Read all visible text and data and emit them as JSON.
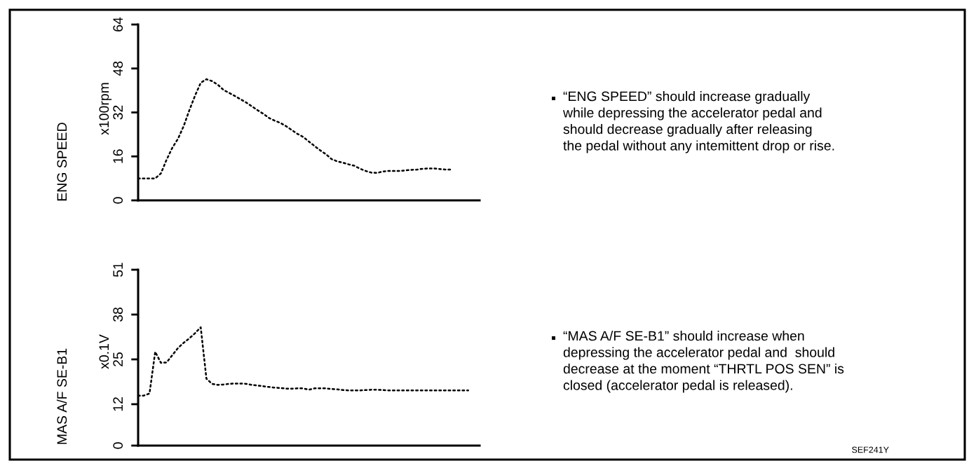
{
  "chart_data": [
    {
      "type": "line",
      "ylabel": "ENG SPEED",
      "color": "#000000",
      "line_style": "dotted",
      "tick_labels": "y",
      "categories": [
        null,
        null,
        null,
        null,
        null,
        null,
        null,
        null,
        null,
        null,
        null,
        null,
        null,
        null,
        null,
        null,
        null,
        null,
        null,
        null,
        null,
        null,
        null,
        null,
        null,
        null,
        null,
        null,
        null,
        null,
        null,
        null,
        null,
        null,
        null,
        null,
        null,
        null,
        null,
        null,
        null,
        null,
        null,
        null,
        null,
        null,
        null,
        null,
        null,
        null,
        null,
        null,
        null,
        null,
        null,
        null,
        null,
        null,
        null,
        null,
        null
      ],
      "values": [
        8.0,
        8.0,
        8.0,
        8.0,
        9.8,
        14.8,
        19.1,
        22.4,
        27.0,
        32.8,
        38.1,
        42.8,
        44.1,
        43.4,
        42.1,
        40.2,
        39.1,
        38.0,
        36.8,
        35.6,
        34.2,
        32.8,
        31.5,
        30.0,
        29.0,
        28.2,
        27.0,
        25.6,
        24.2,
        23.1,
        21.4,
        19.8,
        18.2,
        16.8,
        15.0,
        14.2,
        13.7,
        13.1,
        12.6,
        11.5,
        10.7,
        10.1,
        10.0,
        10.5,
        10.7,
        10.7,
        10.7,
        10.9,
        11.1,
        11.2,
        11.5,
        11.6,
        11.6,
        11.4,
        11.2,
        11.2,
        null,
        null,
        null,
        null,
        null
      ],
      "ylim": [
        0,
        64
      ],
      "yticks": [
        0,
        16,
        32,
        48,
        64
      ],
      "annotations": [
        "x100rpm",
        "“ENG SPEED” should increase gradually\nwhile depressing the accelerator pedal and\nshould decrease gradually after releasing\nthe pedal without any intemittent drop or rise."
      ]
    },
    {
      "type": "line",
      "ylabel": "MAS A/F SE-B1",
      "color": "#000000",
      "line_style": "dotted",
      "tick_labels": "y",
      "categories": [
        null,
        null,
        null,
        null,
        null,
        null,
        null,
        null,
        null,
        null,
        null,
        null,
        null,
        null,
        null,
        null,
        null,
        null,
        null,
        null,
        null,
        null,
        null,
        null,
        null,
        null,
        null,
        null,
        null,
        null,
        null,
        null,
        null,
        null,
        null,
        null,
        null,
        null,
        null,
        null,
        null,
        null,
        null,
        null,
        null,
        null,
        null,
        null,
        null,
        null,
        null,
        null,
        null,
        null,
        null,
        null,
        null,
        null,
        null,
        null,
        null
      ],
      "values": [
        14.5,
        14.5,
        15.1,
        27.2,
        24.0,
        24.1,
        26.2,
        28.3,
        29.8,
        31.1,
        32.6,
        34.3,
        19.4,
        17.9,
        17.6,
        17.7,
        17.9,
        18.0,
        18.0,
        17.9,
        17.6,
        17.4,
        17.2,
        17.0,
        16.8,
        16.7,
        16.5,
        16.5,
        16.6,
        16.6,
        16.2,
        16.6,
        16.6,
        16.6,
        16.4,
        16.3,
        16.1,
        16.0,
        16.0,
        16.0,
        16.1,
        16.2,
        16.2,
        16.1,
        16.0,
        16.0,
        16.0,
        16.0,
        16.0,
        16.0,
        16.0,
        16.0,
        16.0,
        16.0,
        16.0,
        16.0,
        16.0,
        16.0,
        16.0,
        null,
        null
      ],
      "ylim": [
        0,
        51
      ],
      "yticks": [
        0,
        12,
        25,
        38,
        51
      ],
      "annotations": [
        "x0.1V",
        "“MAS A/F SE-B1” should increase when\ndepressing the accelerator pedal and  should\ndecrease at the moment “THRTL POS SEN” is\nclosed (accelerator pedal is released).",
        "SEF241Y"
      ]
    }
  ]
}
